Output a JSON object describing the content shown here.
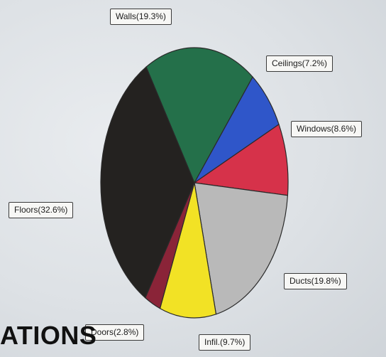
{
  "heading": "ATIONS",
  "chart_data": {
    "type": "pie",
    "title": "",
    "slices": [
      {
        "category": "Walls",
        "value": 19.3,
        "label": "Walls(19.3%)",
        "color": "#24704a"
      },
      {
        "category": "Ceilings",
        "value": 7.2,
        "label": "Ceilings(7.2%)",
        "color": "#2f56c9"
      },
      {
        "category": "Windows",
        "value": 8.6,
        "label": "Windows(8.6%)",
        "color": "#d6324a"
      },
      {
        "category": "Ducts",
        "value": 19.8,
        "label": "Ducts(19.8%)",
        "color": "#b9b9b9"
      },
      {
        "category": "Infil.",
        "value": 9.7,
        "label": "Infil.(9.7%)",
        "color": "#f2e225"
      },
      {
        "category": "Doors",
        "value": 2.8,
        "label": "Doors(2.8%)",
        "color": "#8a2438"
      },
      {
        "category": "Floors",
        "value": 32.6,
        "label": "Floors(32.6%)",
        "color": "#242220"
      }
    ],
    "legend": "none"
  }
}
